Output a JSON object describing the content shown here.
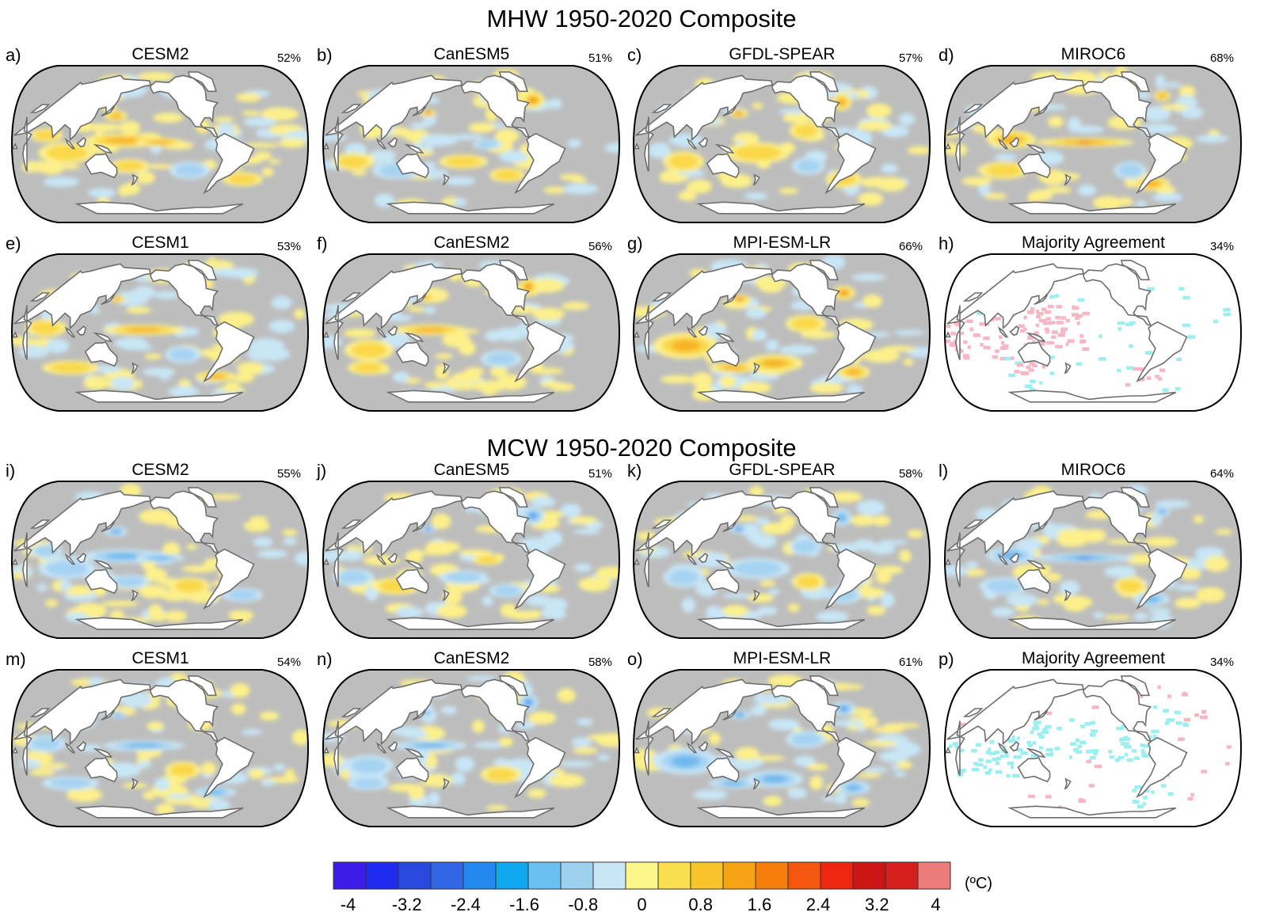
{
  "titles": {
    "mhw": "MHW 1950-2020 Composite",
    "mcw": "MCW 1950-2020 Composite"
  },
  "colorbar": {
    "unit": "(ºC)",
    "colors": [
      "#3d1ce8",
      "#1f2bf0",
      "#2a47de",
      "#3366e6",
      "#2389f0",
      "#0fa8ee",
      "#6ac0f0",
      "#9ed1f0",
      "#c8e6f6",
      "#fdf68a",
      "#f9df4f",
      "#f7c52a",
      "#f7a414",
      "#f77e0c",
      "#f4560f",
      "#ef260f",
      "#cc1515",
      "#d62020",
      "#ec7b7b"
    ],
    "tick_labels": [
      "-4",
      "-3.2",
      "-2.4",
      "-1.6",
      "-0.8",
      "0",
      "0.8",
      "1.6",
      "2.4",
      "3.2",
      "4"
    ],
    "tick_values": [
      -4,
      -3.2,
      -2.4,
      -1.6,
      -0.8,
      0,
      0.8,
      1.6,
      2.4,
      3.2,
      4
    ]
  },
  "legend_colors": {
    "ocean_neutral": "#bdbdbd",
    "warm_light": "#fdf08a",
    "warm_mid": "#f7c52a",
    "warm_strong": "#f08a10",
    "warm_extreme": "#e2301b",
    "cool_light": "#c8e6f6",
    "cool_mid": "#6fb8ee",
    "cool_strong": "#2a6ee8",
    "agree_warm": "#f7b7c4",
    "agree_cool": "#9befef",
    "coast": "#6e6e6e",
    "land": "#ffffff"
  },
  "panels": [
    {
      "letter": "a)",
      "model": "CESM2",
      "pct": "52%",
      "mode": "warm",
      "scheme": "cesm2"
    },
    {
      "letter": "b)",
      "model": "CanESM5",
      "pct": "51%",
      "mode": "warm",
      "scheme": "canesm5"
    },
    {
      "letter": "c)",
      "model": "GFDL-SPEAR",
      "pct": "57%",
      "mode": "warm",
      "scheme": "gfdl"
    },
    {
      "letter": "d)",
      "model": "MIROC6",
      "pct": "68%",
      "mode": "warm",
      "scheme": "miroc6"
    },
    {
      "letter": "e)",
      "model": "CESM1",
      "pct": "53%",
      "mode": "warm",
      "scheme": "cesm1"
    },
    {
      "letter": "f)",
      "model": "CanESM2",
      "pct": "56%",
      "mode": "warm",
      "scheme": "canesm2"
    },
    {
      "letter": "g)",
      "model": "MPI-ESM-LR",
      "pct": "66%",
      "mode": "warm",
      "scheme": "mpi"
    },
    {
      "letter": "h)",
      "model": "Majority Agreement",
      "pct": "34%",
      "mode": "agree-warm",
      "scheme": "agree"
    },
    {
      "letter": "i)",
      "model": "CESM2",
      "pct": "55%",
      "mode": "cool",
      "scheme": "cesm2"
    },
    {
      "letter": "j)",
      "model": "CanESM5",
      "pct": "51%",
      "mode": "cool",
      "scheme": "canesm5"
    },
    {
      "letter": "k)",
      "model": "GFDL-SPEAR",
      "pct": "58%",
      "mode": "cool",
      "scheme": "gfdl"
    },
    {
      "letter": "l)",
      "model": "MIROC6",
      "pct": "64%",
      "mode": "cool",
      "scheme": "miroc6"
    },
    {
      "letter": "m)",
      "model": "CESM1",
      "pct": "54%",
      "mode": "cool",
      "scheme": "cesm1"
    },
    {
      "letter": "n)",
      "model": "CanESM2",
      "pct": "58%",
      "mode": "cool",
      "scheme": "canesm2"
    },
    {
      "letter": "o)",
      "model": "MPI-ESM-LR",
      "pct": "61%",
      "mode": "cool",
      "scheme": "mpi"
    },
    {
      "letter": "p)",
      "model": "Majority Agreement",
      "pct": "34%",
      "mode": "agree-cool",
      "scheme": "agree"
    }
  ],
  "chart_data": {
    "type": "heatmap",
    "title": "MHW 1950-2020 Composite / MCW 1950-2020 Composite",
    "colorbar_label": "(ºC)",
    "colorbar_range": [
      -4,
      4
    ],
    "colorbar_step": 0.4,
    "series": [
      {
        "name": "MHW CESM2",
        "panel": "a)",
        "coverage_percent": 52
      },
      {
        "name": "MHW CanESM5",
        "panel": "b)",
        "coverage_percent": 51
      },
      {
        "name": "MHW GFDL-SPEAR",
        "panel": "c)",
        "coverage_percent": 57
      },
      {
        "name": "MHW MIROC6",
        "panel": "d)",
        "coverage_percent": 68
      },
      {
        "name": "MHW CESM1",
        "panel": "e)",
        "coverage_percent": 53
      },
      {
        "name": "MHW CanESM2",
        "panel": "f)",
        "coverage_percent": 56
      },
      {
        "name": "MHW MPI-ESM-LR",
        "panel": "g)",
        "coverage_percent": 66
      },
      {
        "name": "MHW Majority Agreement",
        "panel": "h)",
        "coverage_percent": 34
      },
      {
        "name": "MCW CESM2",
        "panel": "i)",
        "coverage_percent": 55
      },
      {
        "name": "MCW CanESM5",
        "panel": "j)",
        "coverage_percent": 51
      },
      {
        "name": "MCW GFDL-SPEAR",
        "panel": "k)",
        "coverage_percent": 58
      },
      {
        "name": "MCW MIROC6",
        "panel": "l)",
        "coverage_percent": 64
      },
      {
        "name": "MCW CESM1",
        "panel": "m)",
        "coverage_percent": 54
      },
      {
        "name": "MCW CanESM2",
        "panel": "n)",
        "coverage_percent": 58
      },
      {
        "name": "MCW MPI-ESM-LR",
        "panel": "o)",
        "coverage_percent": 61
      },
      {
        "name": "MCW Majority Agreement",
        "panel": "p)",
        "coverage_percent": 34
      }
    ]
  }
}
